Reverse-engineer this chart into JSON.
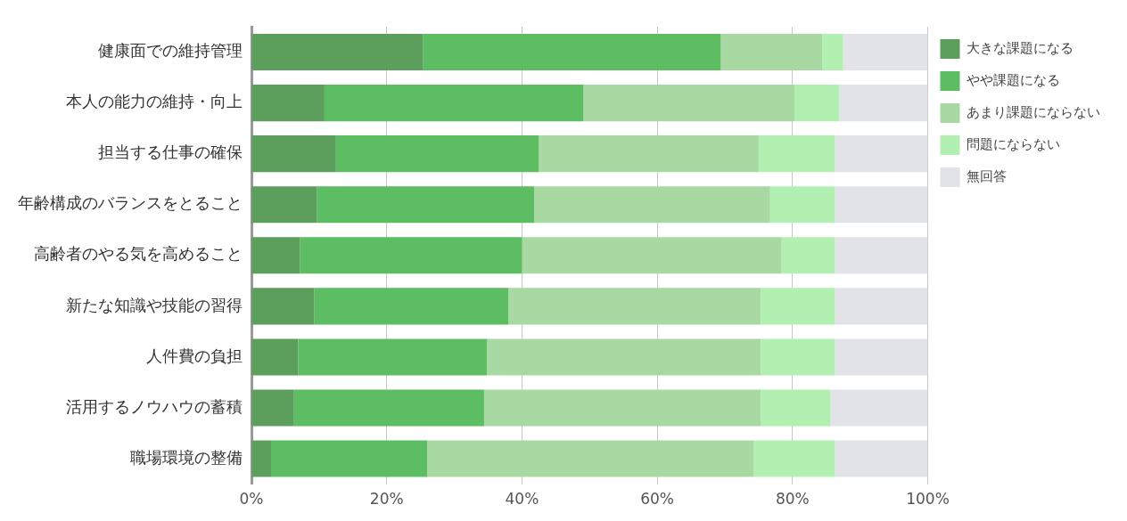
{
  "chart_data": {
    "type": "bar",
    "orientation": "horizontal",
    "stacked": true,
    "categories": [
      "健康面での維持管理",
      "本人の能力の維持・向上",
      "担当する仕事の確保",
      "年齢構成のバランスをとること",
      "高齢者のやる気を高めること",
      "新たな知識や技能の習得",
      "人件費の負担",
      "活用するノウハウの蓄積",
      "職場環境の整備"
    ],
    "series": [
      {
        "name": "大きな課題になる",
        "color": "#5c9e5c",
        "values": [
          25.4,
          10.8,
          12.5,
          9.7,
          7.2,
          9.3,
          6.9,
          6.3,
          2.9
        ]
      },
      {
        "name": "やや課題になる",
        "color": "#5cbd62",
        "values": [
          44.0,
          38.3,
          30.0,
          32.1,
          32.8,
          28.7,
          27.9,
          28.1,
          23.1
        ]
      },
      {
        "name": "あまり課題にならない",
        "color": "#a9d9a2",
        "values": [
          15.0,
          31.2,
          32.5,
          34.9,
          38.4,
          37.3,
          40.5,
          40.9,
          48.3
        ]
      },
      {
        "name": "問題にならない",
        "color": "#b2f0b2",
        "values": [
          3.1,
          6.6,
          11.3,
          9.6,
          7.9,
          11.0,
          11.0,
          10.3,
          12.0
        ]
      },
      {
        "name": "無回答",
        "color": "#e1e3e8",
        "values": [
          12.5,
          13.1,
          13.7,
          13.7,
          13.7,
          13.7,
          13.7,
          14.4,
          13.7
        ]
      }
    ],
    "xlim": [
      0,
      100
    ],
    "xticks": [
      {
        "value": 0,
        "label": "0%"
      },
      {
        "value": 20,
        "label": "20%"
      },
      {
        "value": 40,
        "label": "40%"
      },
      {
        "value": 60,
        "label": "60%"
      },
      {
        "value": 80,
        "label": "80%"
      },
      {
        "value": 100,
        "label": "100%"
      }
    ],
    "grid": "x",
    "legend": "right"
  }
}
